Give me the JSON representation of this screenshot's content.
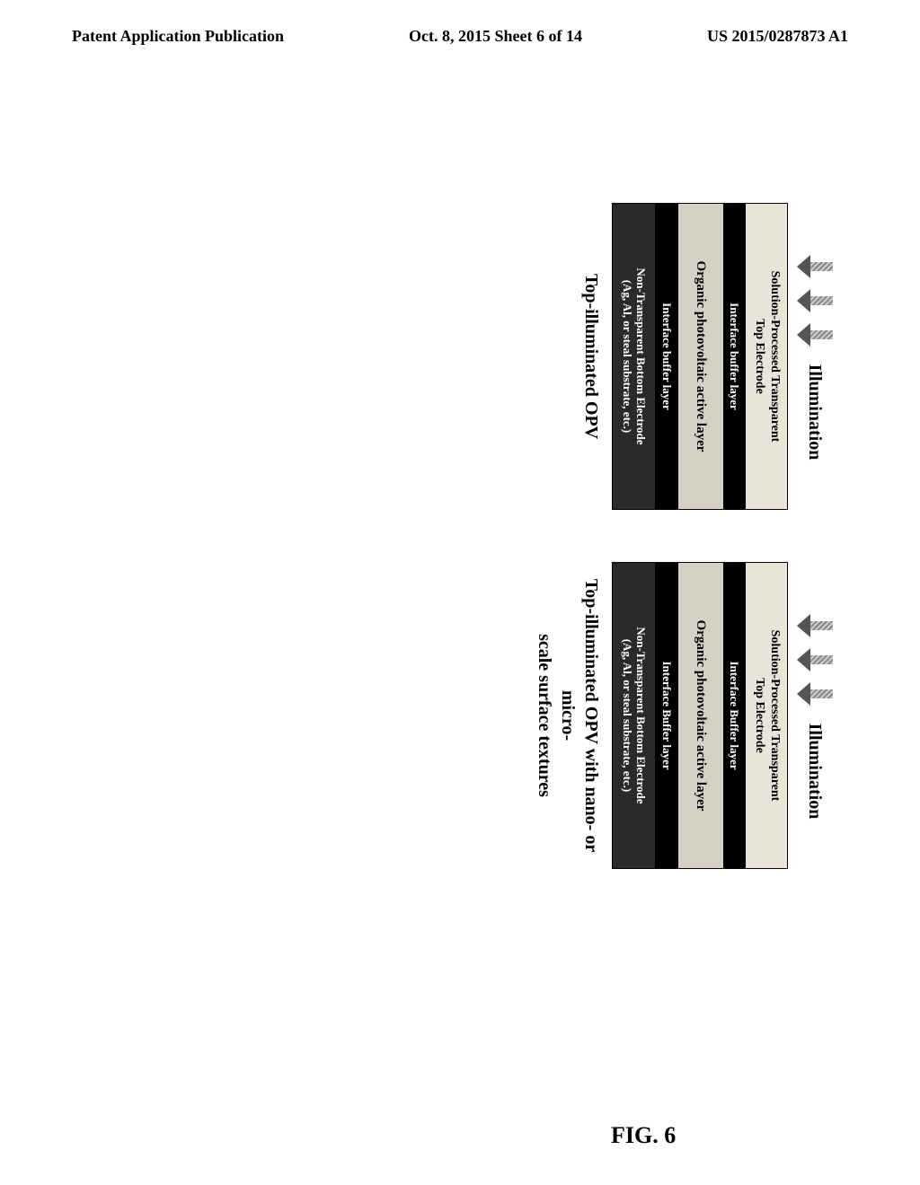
{
  "header": {
    "left": "Patent Application Publication",
    "center": "Oct. 8, 2015  Sheet 6 of 14",
    "right": "US 2015/0287873 A1"
  },
  "illumination_label": "Illumination",
  "diagrams": {
    "left": {
      "layers": {
        "top": "Solution-Processed Transparent\nTop Electrode",
        "buffer1": "Interface buffer layer",
        "active": "Organic photovoltaic active layer",
        "buffer2": "Interface buffer layer",
        "bottom": "Non-Transparent Bottom Electrode\n(Ag, Al, or steal substrate, etc.)"
      },
      "caption": "Top-illuminated OPV"
    },
    "right": {
      "layers": {
        "top": "Solution-Processed Transparent\nTop Electrode",
        "buffer1": "Interface Buffer layer",
        "active": "Organic photovoltaic active layer",
        "buffer2": "Interface Buffer layer",
        "bottom": "Non-Transparent Bottom Electrode\n(Ag, Al, or steal substrate, etc.)"
      },
      "caption": "Top-illuminated OPV with nano- or micro-\nscale surface textures"
    }
  },
  "figure_label": "FIG. 6",
  "colors": {
    "page_bg": "#ffffff",
    "text": "#000000",
    "layer_light": "#e8e4d8",
    "layer_dark": "#000000",
    "layer_active": "#d4d0c4",
    "layer_bottom": "#2a2a2a",
    "arrow_fill": "#555555"
  }
}
